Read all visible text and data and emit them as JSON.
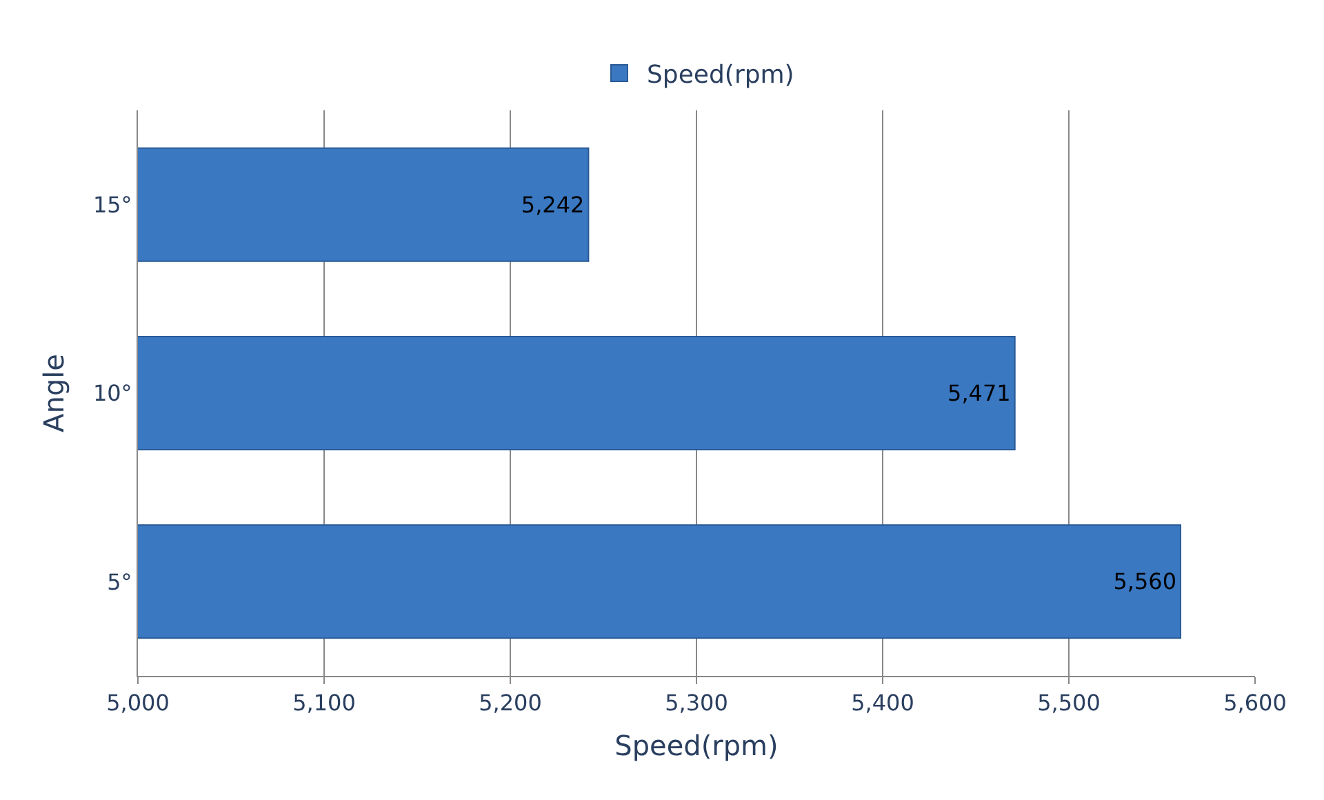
{
  "chart_data": {
    "type": "bar",
    "orientation": "horizontal",
    "xlabel": "Speed(rpm)",
    "ylabel": "Angle",
    "categories": [
      "15°",
      "10°",
      "5°"
    ],
    "series": [
      {
        "name": "Speed(rpm)",
        "color": "#3a78c2",
        "values": [
          5242,
          5471,
          5560
        ],
        "value_labels": [
          "5,242",
          "5,471",
          "5,560"
        ]
      }
    ],
    "xlim": [
      5000,
      5600
    ],
    "xticks": [
      {
        "value": 5000,
        "label": "5,000"
      },
      {
        "value": 5100,
        "label": "5,100"
      },
      {
        "value": 5200,
        "label": "5,200"
      },
      {
        "value": 5300,
        "label": "5,300"
      },
      {
        "value": 5400,
        "label": "5,400"
      },
      {
        "value": 5500,
        "label": "5,500"
      },
      {
        "value": 5600,
        "label": "5,600"
      }
    ],
    "grid": "x",
    "legend": "top"
  }
}
